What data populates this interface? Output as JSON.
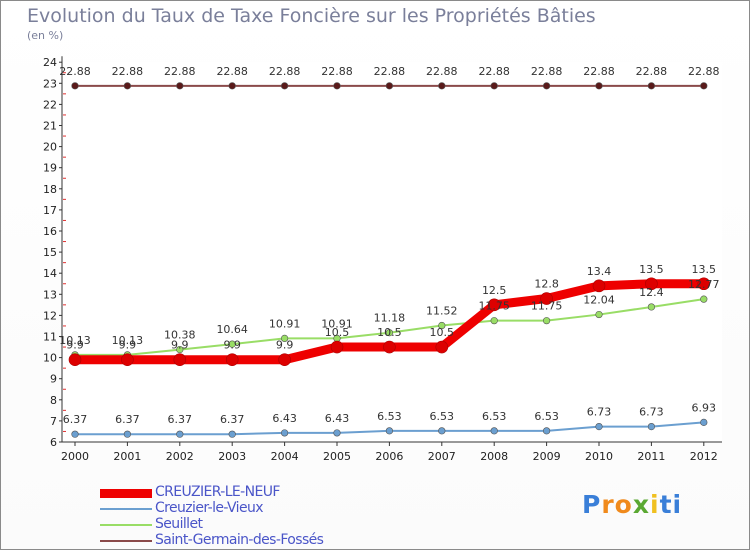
{
  "chart_data": {
    "type": "line",
    "title": "Evolution du Taux de Taxe Foncière sur les Propriétés Bâties",
    "subtitle": "(en %)",
    "x": [
      "2000",
      "2001",
      "2002",
      "2003",
      "2004",
      "2005",
      "2006",
      "2007",
      "2008",
      "2009",
      "2010",
      "2011",
      "2012"
    ],
    "ylim": [
      6,
      24
    ],
    "yticks": [
      6,
      7,
      8,
      9,
      10,
      11,
      12,
      13,
      14,
      15,
      16,
      17,
      18,
      19,
      20,
      21,
      22,
      23,
      24
    ],
    "series": [
      {
        "name": "CREUZIER-LE-NEUF",
        "color": "#ee0000",
        "values": [
          9.9,
          9.9,
          9.9,
          9.9,
          9.9,
          10.5,
          10.5,
          10.5,
          12.5,
          12.8,
          13.4,
          13.5,
          13.5
        ],
        "labels": [
          "9.9",
          "9.9",
          "9.9",
          "9.9",
          "9.9",
          "10.5",
          "10.5",
          "10.5",
          "12.5",
          "12.8",
          "13.4",
          "13.5",
          "13.5"
        ]
      },
      {
        "name": "Creuzier-le-Vieux",
        "color": "#6b9fd0",
        "values": [
          6.37,
          6.37,
          6.37,
          6.37,
          6.43,
          6.43,
          6.53,
          6.53,
          6.53,
          6.53,
          6.73,
          6.73,
          6.93
        ],
        "labels": [
          "6.37",
          "6.37",
          "6.37",
          "6.37",
          "6.43",
          "6.43",
          "6.53",
          "6.53",
          "6.53",
          "6.53",
          "6.73",
          "6.73",
          "6.93"
        ]
      },
      {
        "name": "Seuillet",
        "color": "#99dd66",
        "values": [
          10.13,
          10.13,
          10.38,
          10.64,
          10.91,
          10.91,
          11.18,
          11.52,
          11.75,
          11.75,
          12.04,
          12.4,
          12.77
        ],
        "labels": [
          "10.13",
          "10.13",
          "10.38",
          "10.64",
          "10.91",
          "10.91",
          "11.18",
          "11.52",
          "11.75",
          "11.75",
          "12.04",
          "12.4",
          "12.77"
        ]
      },
      {
        "name": "Saint-Germain-des-Fossés",
        "color": "#8a4a4a",
        "values": [
          22.88,
          22.88,
          22.88,
          22.88,
          22.88,
          22.88,
          22.88,
          22.88,
          22.88,
          22.88,
          22.88,
          22.88,
          22.88
        ],
        "labels": [
          "22.88",
          "22.88",
          "22.88",
          "22.88",
          "22.88",
          "22.88",
          "22.88",
          "22.88",
          "22.88",
          "22.88",
          "22.88",
          "22.88",
          "22.88"
        ]
      }
    ]
  },
  "logo": {
    "letters": [
      "P",
      "r",
      "o",
      "x",
      "i",
      "t",
      "i"
    ],
    "colors": [
      "#3a7fd8",
      "#f08a1c",
      "#f08a1c",
      "#5aa832",
      "#f0c020",
      "#3a7fd8",
      "#3a7fd8"
    ]
  }
}
